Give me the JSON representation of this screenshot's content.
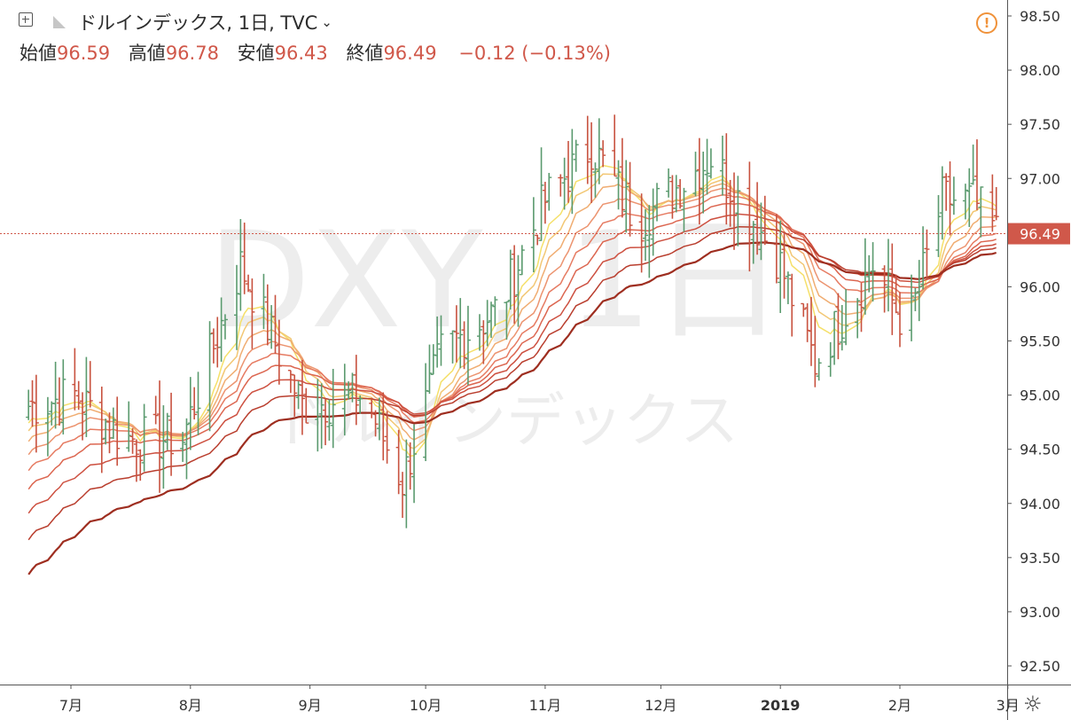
{
  "header": {
    "title": "ドルインデックス, 1日, TVC",
    "open_label": "始値",
    "open_value": "96.59",
    "high_label": "高値",
    "high_value": "96.78",
    "low_label": "安値",
    "low_value": "96.43",
    "close_label": "終値",
    "close_value": "96.49",
    "change": "−0.12 (−0.13%)"
  },
  "watermark": {
    "symbol": "DXY, 1日",
    "name": "ドルインデックス"
  },
  "colors": {
    "up_bar": "#5a9a6e",
    "down_bar": "#c8523f",
    "ribbon": [
      "#f5e06a",
      "#f2c774",
      "#f0ad72",
      "#ec9470",
      "#e67b62",
      "#dc6650",
      "#cd5040",
      "#b93e2e",
      "#9e2e20"
    ],
    "price_line": "#d0584a",
    "warning": "#f0923a"
  },
  "chart_data": {
    "type": "line",
    "x_axis_labels": [
      "7月",
      "8月",
      "9月",
      "10月",
      "11月",
      "12月",
      "2019",
      "2月",
      "3月"
    ],
    "y_axis_labels": [
      "98.50",
      "98.00",
      "97.50",
      "97.00",
      "96.50",
      "96.00",
      "95.50",
      "95.00",
      "94.50",
      "94.00",
      "93.50",
      "93.00",
      "92.50"
    ],
    "ylim": [
      92.3,
      98.6
    ],
    "last_price": "96.49",
    "ohlc_keyframes": [
      {
        "date": "2018-06-20",
        "close": 94.9
      },
      {
        "date": "2018-07-02",
        "close": 95.0
      },
      {
        "date": "2018-07-15",
        "close": 94.6
      },
      {
        "date": "2018-07-30",
        "close": 94.6
      },
      {
        "date": "2018-08-14",
        "close": 96.2
      },
      {
        "date": "2018-08-30",
        "close": 94.9
      },
      {
        "date": "2018-09-15",
        "close": 95.0
      },
      {
        "date": "2018-09-25",
        "close": 94.2
      },
      {
        "date": "2018-10-05",
        "close": 95.4
      },
      {
        "date": "2018-10-20",
        "close": 95.8
      },
      {
        "date": "2018-11-01",
        "close": 96.8
      },
      {
        "date": "2018-11-13",
        "close": 97.3
      },
      {
        "date": "2018-11-25",
        "close": 96.6
      },
      {
        "date": "2018-12-14",
        "close": 97.2
      },
      {
        "date": "2018-12-31",
        "close": 96.3
      },
      {
        "date": "2019-01-10",
        "close": 95.3
      },
      {
        "date": "2019-01-25",
        "close": 96.2
      },
      {
        "date": "2019-02-03",
        "close": 95.6
      },
      {
        "date": "2019-02-12",
        "close": 96.8
      },
      {
        "date": "2019-02-20",
        "close": 96.8
      },
      {
        "date": "2019-02-26",
        "close": 96.5
      }
    ],
    "ribbon_periods": [
      8,
      11,
      15,
      20,
      26,
      33,
      42,
      52,
      65
    ]
  }
}
